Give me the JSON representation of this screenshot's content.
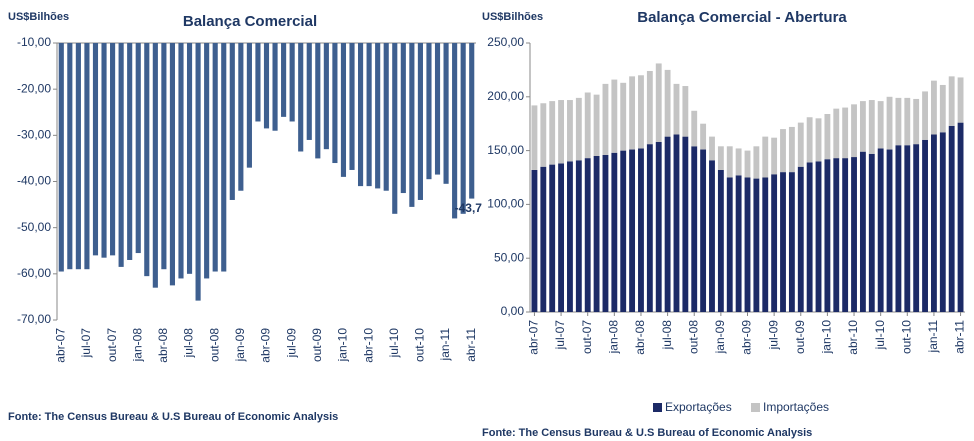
{
  "chart_data": [
    {
      "type": "bar",
      "title": "Balança Comercial",
      "y_label": "US$Bilhões",
      "source": "Fonte: The Census Bureau & U.S Bureau of Economic Analysis",
      "color": "#3e5f8f",
      "categories": [
        "abr-07",
        null,
        null,
        "jul-07",
        null,
        null,
        "out-07",
        null,
        null,
        "jan-08",
        null,
        null,
        "abr-08",
        null,
        null,
        "jul-08",
        null,
        null,
        "out-08",
        null,
        null,
        "jan-09",
        null,
        null,
        "abr-09",
        null,
        null,
        "jul-09",
        null,
        null,
        "out-09",
        null,
        null,
        "jan-10",
        null,
        null,
        "abr-10",
        null,
        null,
        "jul-10",
        null,
        null,
        "out-10",
        null,
        null,
        "jan-11",
        null,
        null,
        "abr-11"
      ],
      "values": [
        -59.5,
        -59,
        -59,
        -59,
        -56,
        -56.5,
        -56,
        -58.5,
        -57,
        -55.5,
        -60.5,
        -63,
        -59,
        -62.5,
        -61,
        -60,
        -65.8,
        -61,
        -59.5,
        -59.5,
        -44,
        -42,
        -37,
        -27,
        -28.5,
        -29,
        -26,
        -27,
        -33.5,
        -31,
        -35,
        -33,
        -36,
        -39,
        -37.5,
        -41,
        -41,
        -41.5,
        -42,
        -47,
        -42.5,
        -45.5,
        -44,
        -39.5,
        -38.5,
        -40.5,
        -48,
        -47,
        -43.7
      ],
      "value_labels": [
        null,
        null,
        null,
        null,
        null,
        null,
        null,
        null,
        null,
        null,
        null,
        null,
        null,
        null,
        null,
        null,
        null,
        null,
        null,
        null,
        null,
        null,
        null,
        null,
        null,
        null,
        null,
        null,
        null,
        null,
        null,
        null,
        null,
        null,
        null,
        null,
        null,
        null,
        null,
        null,
        null,
        null,
        null,
        null,
        null,
        null,
        null,
        null,
        "-43,7"
      ],
      "ylim": [
        -70,
        -10
      ],
      "yticks": [
        {
          "value": -10,
          "label": "-10,00"
        },
        {
          "value": -20,
          "label": "-20,00"
        },
        {
          "value": -30,
          "label": "-30,00"
        },
        {
          "value": -40,
          "label": "-40,00"
        },
        {
          "value": -50,
          "label": "-50,00"
        },
        {
          "value": -60,
          "label": "-60,00"
        },
        {
          "value": -70,
          "label": "-70,00"
        }
      ]
    },
    {
      "type": "stacked_bar",
      "title": "Balança Comercial - Abertura",
      "y_label": "US$Bilhões",
      "source": "Fonte: The Census Bureau & U.S Bureau of Economic Analysis",
      "legend": "bottom",
      "categories": [
        "abr-07",
        null,
        null,
        "jul-07",
        null,
        null,
        "out-07",
        null,
        null,
        "jan-08",
        null,
        null,
        "abr-08",
        null,
        null,
        "jul-08",
        null,
        null,
        "out-08",
        null,
        null,
        "jan-09",
        null,
        null,
        "abr-09",
        null,
        null,
        "jul-09",
        null,
        null,
        "out-09",
        null,
        null,
        "jan-10",
        null,
        null,
        "abr-10",
        null,
        null,
        "jul-10",
        null,
        null,
        "out-10",
        null,
        null,
        "jan-11",
        null,
        null,
        "abr-11"
      ],
      "series": [
        {
          "name": "Exportações",
          "color": "#1c2a66",
          "values": [
            132,
            135,
            137,
            138,
            140,
            141,
            143,
            145,
            146,
            148,
            150,
            151,
            152,
            156,
            158,
            163,
            165,
            163,
            154,
            151,
            141,
            132,
            125,
            127,
            125,
            124,
            125,
            128,
            130,
            130,
            135,
            139,
            140,
            142,
            143,
            143,
            144,
            149,
            147,
            152,
            151,
            155,
            155,
            156,
            160,
            165,
            167,
            173,
            176
          ]
        },
        {
          "name": "Importações",
          "color": "#c4c4c4",
          "values": [
            60,
            59,
            59,
            59,
            57,
            58,
            61,
            57,
            66,
            68,
            63,
            68,
            68,
            68,
            73,
            62,
            47,
            47,
            33,
            24,
            22,
            22,
            29,
            25,
            25,
            30,
            38,
            34,
            40,
            42,
            41,
            42,
            40,
            42,
            46,
            47,
            49,
            47,
            50,
            44,
            49,
            44,
            44,
            42,
            45,
            50,
            44,
            46,
            42
          ]
        }
      ],
      "ylim": [
        0,
        250
      ],
      "yticks": [
        {
          "value": 0,
          "label": "0,00"
        },
        {
          "value": 50,
          "label": "50,00"
        },
        {
          "value": 100,
          "label": "100,00"
        },
        {
          "value": 150,
          "label": "150,00"
        },
        {
          "value": 200,
          "label": "200,00"
        },
        {
          "value": 250,
          "label": "250,00"
        }
      ]
    }
  ]
}
